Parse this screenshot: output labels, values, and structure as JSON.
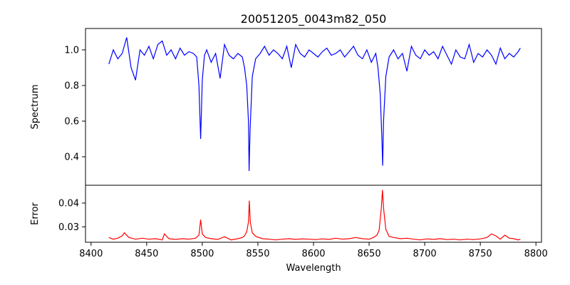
{
  "chart_data": [
    {
      "type": "line",
      "title": "20051205_0043m82_050",
      "xlabel": "",
      "ylabel": "Spectrum",
      "xlim": [
        8395,
        8805
      ],
      "ylim": [
        0.24,
        1.12
      ],
      "yticks": [
        0.4,
        0.6,
        0.8,
        1.0
      ],
      "ytick_labels": [
        "0.4",
        "0.6",
        "0.8",
        "1.0"
      ],
      "grid": false,
      "series": [
        {
          "color": "#0000ff",
          "x": [
            8416,
            8420,
            8424,
            8428,
            8432,
            8436,
            8440,
            8444,
            8448,
            8452,
            8456,
            8460,
            8464,
            8468,
            8472,
            8476,
            8480,
            8484,
            8488,
            8492,
            8495,
            8497,
            8498.5,
            8500,
            8502,
            8504,
            8508,
            8512,
            8516,
            8520,
            8524,
            8528,
            8532,
            8536,
            8538,
            8540,
            8541.5,
            8542.1,
            8543,
            8545,
            8548,
            8552,
            8556,
            8560,
            8564,
            8568,
            8572,
            8576,
            8580,
            8584,
            8588,
            8592,
            8596,
            8600,
            8604,
            8608,
            8612,
            8616,
            8620,
            8624,
            8628,
            8632,
            8636,
            8640,
            8644,
            8648,
            8652,
            8656,
            8658,
            8660,
            8661.5,
            8662.2,
            8663,
            8665,
            8668,
            8672,
            8676,
            8680,
            8684,
            8688,
            8692,
            8696,
            8700,
            8704,
            8708,
            8712,
            8716,
            8720,
            8724,
            8728,
            8732,
            8736,
            8740,
            8744,
            8748,
            8752,
            8756,
            8760,
            8764,
            8768,
            8772,
            8776,
            8780,
            8784,
            8786
          ],
          "y": [
            0.92,
            1.0,
            0.95,
            0.98,
            1.07,
            0.9,
            0.83,
            1.0,
            0.97,
            1.02,
            0.95,
            1.03,
            1.05,
            0.97,
            1.0,
            0.95,
            1.01,
            0.97,
            0.99,
            0.98,
            0.96,
            0.8,
            0.5,
            0.83,
            0.97,
            1.0,
            0.93,
            0.98,
            0.84,
            1.03,
            0.97,
            0.95,
            0.98,
            0.96,
            0.9,
            0.8,
            0.6,
            0.32,
            0.55,
            0.85,
            0.95,
            0.98,
            1.02,
            0.97,
            1.0,
            0.98,
            0.95,
            1.02,
            0.9,
            1.03,
            0.98,
            0.96,
            1.0,
            0.98,
            0.96,
            0.99,
            1.01,
            0.97,
            0.98,
            1.0,
            0.96,
            0.99,
            1.02,
            0.97,
            0.95,
            1.0,
            0.93,
            0.98,
            0.9,
            0.75,
            0.5,
            0.35,
            0.6,
            0.85,
            0.96,
            1.0,
            0.95,
            0.98,
            0.88,
            1.02,
            0.97,
            0.95,
            1.0,
            0.97,
            0.99,
            0.95,
            1.02,
            0.97,
            0.92,
            1.0,
            0.96,
            0.95,
            1.03,
            0.93,
            0.98,
            0.96,
            1.0,
            0.97,
            0.92,
            1.01,
            0.95,
            0.98,
            0.96,
            0.99,
            1.01
          ]
        }
      ]
    },
    {
      "type": "line",
      "title": "",
      "xlabel": "Wavelength",
      "ylabel": "Error",
      "xlim": [
        8395,
        8805
      ],
      "ylim": [
        0.0235,
        0.0475
      ],
      "yticks": [
        0.03,
        0.04
      ],
      "ytick_labels": [
        "0.03",
        "0.04"
      ],
      "xticks": [
        8400,
        8450,
        8500,
        8550,
        8600,
        8650,
        8700,
        8750,
        8800
      ],
      "xtick_labels": [
        "8400",
        "8450",
        "8500",
        "8550",
        "8600",
        "8650",
        "8700",
        "8750",
        "8800"
      ],
      "grid": false,
      "series": [
        {
          "color": "#ff0000",
          "x": [
            8416,
            8420,
            8424,
            8428,
            8430,
            8434,
            8440,
            8446,
            8452,
            8458,
            8464,
            8466,
            8470,
            8476,
            8482,
            8488,
            8494,
            8497,
            8498.5,
            8500,
            8503,
            8508,
            8514,
            8520,
            8526,
            8532,
            8536,
            8538,
            8540,
            8541.5,
            8542.3,
            8543.2,
            8545,
            8548,
            8554,
            8560,
            8566,
            8572,
            8578,
            8584,
            8590,
            8596,
            8602,
            8608,
            8614,
            8620,
            8626,
            8632,
            8638,
            8644,
            8650,
            8654,
            8657,
            8659,
            8661,
            8662,
            8663,
            8665,
            8668,
            8672,
            8678,
            8684,
            8690,
            8696,
            8702,
            8708,
            8714,
            8720,
            8726,
            8732,
            8738,
            8744,
            8750,
            8756,
            8760,
            8764,
            8768,
            8772,
            8776,
            8780,
            8784,
            8786
          ],
          "y": [
            0.0255,
            0.0248,
            0.0252,
            0.0262,
            0.0275,
            0.0255,
            0.0248,
            0.0252,
            0.0248,
            0.025,
            0.0245,
            0.027,
            0.025,
            0.0247,
            0.025,
            0.0248,
            0.0252,
            0.0265,
            0.033,
            0.027,
            0.0255,
            0.025,
            0.0247,
            0.0258,
            0.0245,
            0.025,
            0.0255,
            0.0262,
            0.028,
            0.032,
            0.041,
            0.032,
            0.0275,
            0.026,
            0.025,
            0.0248,
            0.0245,
            0.0248,
            0.025,
            0.0247,
            0.0249,
            0.0248,
            0.0246,
            0.0249,
            0.0247,
            0.0252,
            0.0248,
            0.025,
            0.0255,
            0.025,
            0.0248,
            0.0255,
            0.0265,
            0.0285,
            0.038,
            0.0455,
            0.038,
            0.029,
            0.026,
            0.0255,
            0.025,
            0.0252,
            0.0248,
            0.0245,
            0.0249,
            0.0247,
            0.025,
            0.0246,
            0.0248,
            0.0245,
            0.0248,
            0.0246,
            0.0249,
            0.0255,
            0.027,
            0.0262,
            0.0248,
            0.0265,
            0.0252,
            0.025,
            0.0245,
            0.0248
          ]
        }
      ]
    }
  ]
}
